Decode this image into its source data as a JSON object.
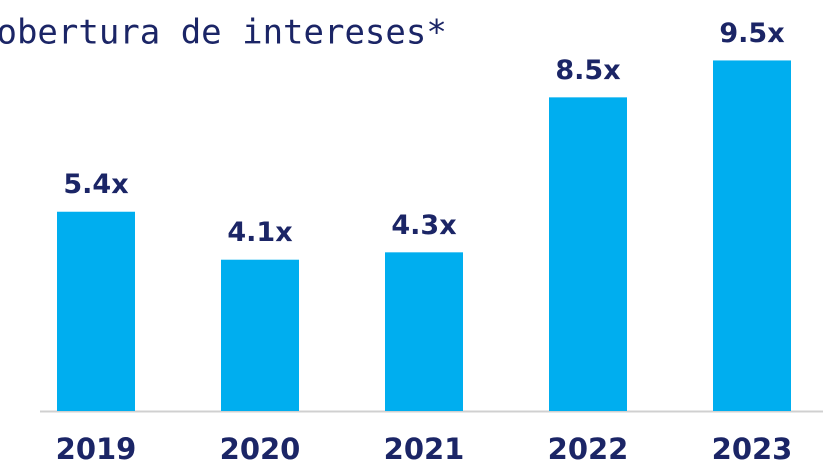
{
  "chart_data": {
    "type": "bar",
    "title": "Cobertura de intereses*",
    "categories": [
      "2019",
      "2020",
      "2021",
      "2022",
      "2023"
    ],
    "values": [
      5.4,
      4.1,
      4.3,
      8.5,
      9.5
    ],
    "value_labels": [
      "5.4x",
      "4.1x",
      "4.3x",
      "8.5x",
      "9.5x"
    ],
    "color": "#00aeef"
  }
}
